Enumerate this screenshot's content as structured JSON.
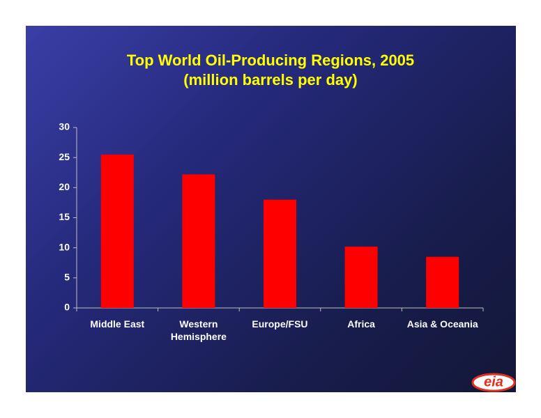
{
  "chart_data": {
    "type": "bar",
    "title": "Top World Oil-Producing Regions, 2005",
    "subtitle": "(million barrels per day)",
    "categories": [
      "Middle East",
      "Western Hemisphere",
      "Europe/FSU",
      "Africa",
      "Asia & Oceania"
    ],
    "values": [
      25.5,
      22.2,
      18.0,
      10.2,
      8.5
    ],
    "color": "#ff0000",
    "ylim": [
      0,
      30
    ],
    "yticks": [
      0,
      5,
      10,
      15,
      20,
      25,
      30
    ],
    "grid": false
  },
  "logo": "eia"
}
